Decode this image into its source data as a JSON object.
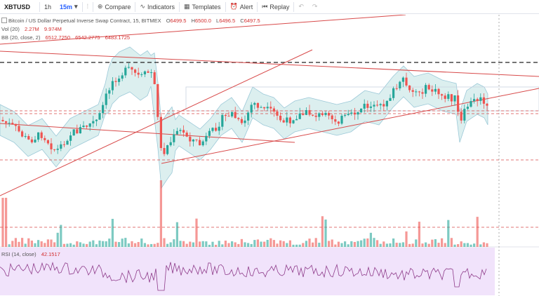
{
  "toolbar": {
    "symbol": "XBTUSD",
    "timeframes": [
      "1h",
      "15m"
    ],
    "compare": "Compare",
    "indicators": "Indicators",
    "templates": "Templates",
    "alert": "Alert",
    "replay": "Replay"
  },
  "legend": {
    "title": "Bitcoin / US Dollar Perpetual Inverse Swap Contract, 15, BITMEX",
    "ohlc": {
      "o_label": "O",
      "o": "6499.5",
      "h_label": "H",
      "h": "6500.0",
      "l_label": "L",
      "l": "6496.5",
      "c_label": "C",
      "c": "6497.5"
    },
    "vol": {
      "label": "Vol (20)",
      "v1": "2.27M",
      "v2": "9.974M"
    },
    "bb": {
      "label": "BB (20, close, 2)",
      "v1": "6512.7250",
      "v2": "6542.2775",
      "v3": "6483.1725"
    },
    "rsi": {
      "label": "RSI (14, close)",
      "value": "42.1517"
    }
  },
  "colors": {
    "up": "#26a69a",
    "down": "#ef5350",
    "trendline": "#d84a4a",
    "bb_fill": "#dcefef",
    "bb_line": "#9cc9d8",
    "rsi_bg": "#f1e3fb",
    "rsi_line": "#8e3b8a"
  }
}
